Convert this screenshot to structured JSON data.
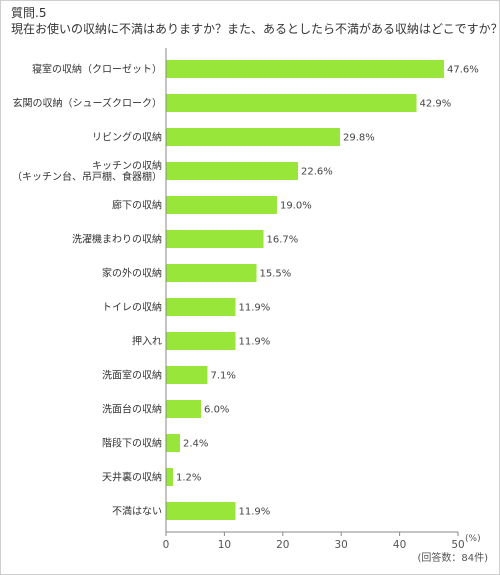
{
  "question": {
    "number": "質問.5",
    "text": "現在お使いの収納に不満はありますか？また、あるとしたら不満がある収納はどこですか？"
  },
  "note": "(回答数：84件)",
  "chart_data": {
    "type": "bar",
    "orientation": "horizontal",
    "categories": [
      [
        "寝室の収納（クローゼット）"
      ],
      [
        "玄関の収納（シューズクローク）"
      ],
      [
        "リビングの収納"
      ],
      [
        "キッチンの収納",
        "（キッチン台、吊戸棚、食器棚）"
      ],
      [
        "廊下の収納"
      ],
      [
        "洗濯機まわりの収納"
      ],
      [
        "家の外の収納"
      ],
      [
        "トイレの収納"
      ],
      [
        "押入れ"
      ],
      [
        "洗面室の収納"
      ],
      [
        "洗面台の収納"
      ],
      [
        "階段下の収納"
      ],
      [
        "天井裏の収納"
      ],
      [
        "不満はない"
      ]
    ],
    "values": [
      47.6,
      42.9,
      29.8,
      22.6,
      19.0,
      16.7,
      15.5,
      11.9,
      11.9,
      7.1,
      6.0,
      2.4,
      1.2,
      11.9
    ],
    "value_labels": [
      "47.6%",
      "42.9%",
      "29.8%",
      "22.6%",
      "19.0%",
      "16.7%",
      "15.5%",
      "11.9%",
      "11.9%",
      "7.1%",
      "6.0%",
      "2.4%",
      "1.2%",
      "11.9%"
    ],
    "xlim": [
      0,
      50
    ],
    "xticks": [
      "0",
      "10",
      "20",
      "30",
      "40",
      "50"
    ],
    "x_unit": "(%)",
    "bar_color": "#99e63a",
    "grid": false
  }
}
